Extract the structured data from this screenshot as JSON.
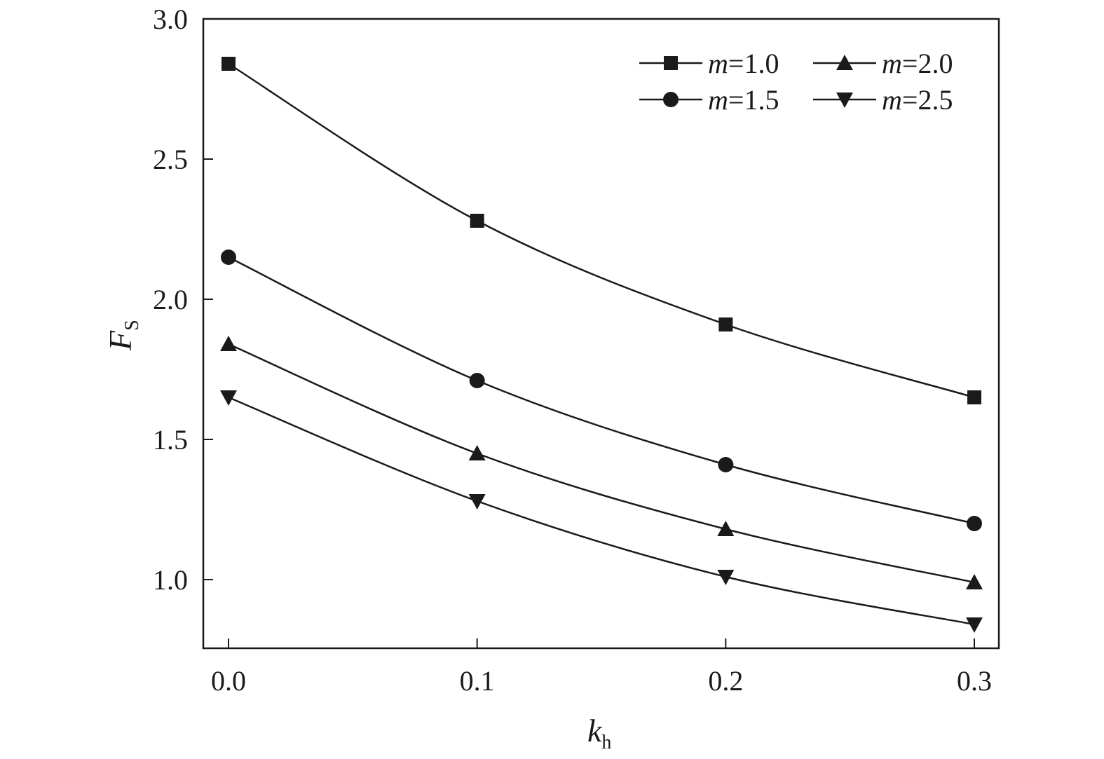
{
  "chart_data": {
    "type": "line",
    "title": "",
    "xlabel": {
      "main": "k",
      "sub": "h"
    },
    "ylabel": {
      "main": "F",
      "sub": "S"
    },
    "x": [
      0.0,
      0.1,
      0.2,
      0.3
    ],
    "xlim": [
      -0.01,
      0.31
    ],
    "ylim": [
      0.75,
      3.0
    ],
    "x_ticks": [
      0.0,
      0.1,
      0.2,
      0.3
    ],
    "x_tick_labels": [
      "0.0",
      "0.1",
      "0.2",
      "0.3"
    ],
    "y_ticks": [
      1.0,
      1.5,
      2.0,
      2.5,
      3.0
    ],
    "y_tick_labels": [
      "1.0",
      "1.5",
      "2.0",
      "2.5",
      "3.0"
    ],
    "grid": false,
    "legend_position": "top-right",
    "series": [
      {
        "var": "m",
        "value": "=1.0",
        "marker": "square",
        "values": [
          2.84,
          2.28,
          1.91,
          1.65
        ]
      },
      {
        "var": "m",
        "value": "=1.5",
        "marker": "circle",
        "values": [
          2.15,
          1.71,
          1.41,
          1.2
        ]
      },
      {
        "var": "m",
        "value": "=2.0",
        "marker": "triangle-up",
        "values": [
          1.84,
          1.45,
          1.18,
          0.99
        ]
      },
      {
        "var": "m",
        "value": "=2.5",
        "marker": "triangle-down",
        "values": [
          1.65,
          1.28,
          1.01,
          0.84
        ]
      }
    ],
    "colors": {
      "line": "#1a1a1a"
    }
  }
}
